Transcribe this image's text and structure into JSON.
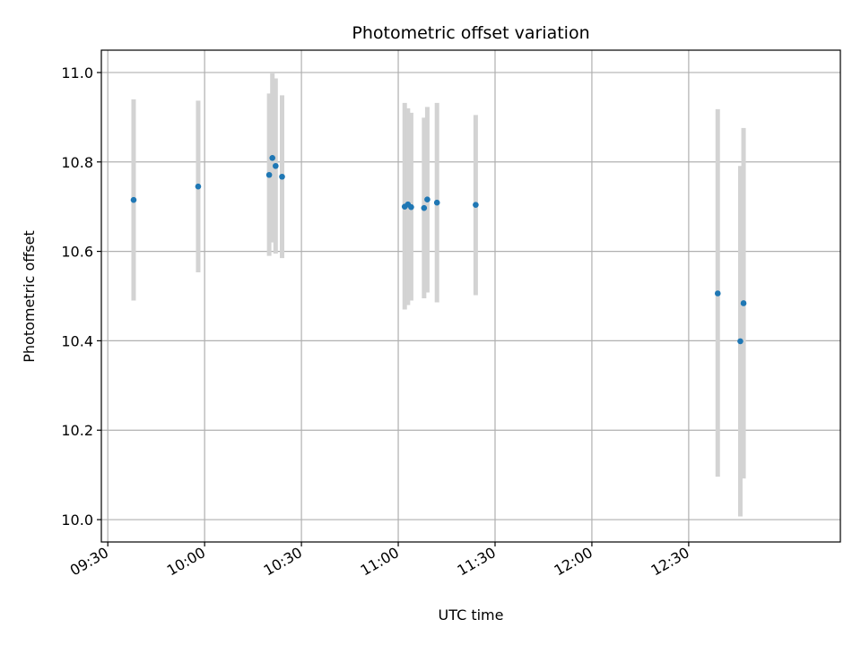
{
  "chart_data": {
    "type": "scatter",
    "title": "Photometric offset variation",
    "xlabel": "UTC time",
    "ylabel": "Photometric offset",
    "x_tick_labels": [
      "09:30",
      "10:00",
      "10:30",
      "11:00",
      "11:30",
      "12:00",
      "12:30"
    ],
    "y_tick_labels": [
      "10.0",
      "10.2",
      "10.4",
      "10.6",
      "10.8",
      "11.0"
    ],
    "y_ticks": [
      10.0,
      10.2,
      10.4,
      10.6,
      10.8,
      11.0
    ],
    "xlim": [
      "09:28",
      "13:17"
    ],
    "ylim": [
      9.95,
      11.05
    ],
    "grid": true,
    "marker_color": "#1f77b4",
    "errorbar_color": "#d3d3d3",
    "points": [
      {
        "x": "09:38",
        "y": 10.715,
        "ylow": 10.49,
        "yhigh": 10.94
      },
      {
        "x": "09:58",
        "y": 10.745,
        "ylow": 10.553,
        "yhigh": 10.937
      },
      {
        "x": "10:20",
        "y": 10.771,
        "ylow": 10.59,
        "yhigh": 10.953
      },
      {
        "x": "10:21",
        "y": 10.809,
        "ylow": 10.62,
        "yhigh": 10.998
      },
      {
        "x": "10:22",
        "y": 10.791,
        "ylow": 10.595,
        "yhigh": 10.987
      },
      {
        "x": "10:24",
        "y": 10.767,
        "ylow": 10.585,
        "yhigh": 10.949
      },
      {
        "x": "11:02",
        "y": 10.7,
        "ylow": 10.47,
        "yhigh": 10.932
      },
      {
        "x": "11:03",
        "y": 10.705,
        "ylow": 10.48,
        "yhigh": 10.92
      },
      {
        "x": "11:04",
        "y": 10.699,
        "ylow": 10.49,
        "yhigh": 10.91
      },
      {
        "x": "11:08",
        "y": 10.697,
        "ylow": 10.495,
        "yhigh": 10.899
      },
      {
        "x": "11:09",
        "y": 10.716,
        "ylow": 10.508,
        "yhigh": 10.923
      },
      {
        "x": "11:12",
        "y": 10.709,
        "ylow": 10.486,
        "yhigh": 10.932
      },
      {
        "x": "11:24",
        "y": 10.704,
        "ylow": 10.502,
        "yhigh": 10.905
      },
      {
        "x": "12:39",
        "y": 10.506,
        "ylow": 10.096,
        "yhigh": 10.918
      },
      {
        "x": "12:46",
        "y": 10.399,
        "ylow": 10.007,
        "yhigh": 10.791
      },
      {
        "x": "12:47",
        "y": 10.484,
        "ylow": 10.092,
        "yhigh": 10.876
      }
    ]
  }
}
